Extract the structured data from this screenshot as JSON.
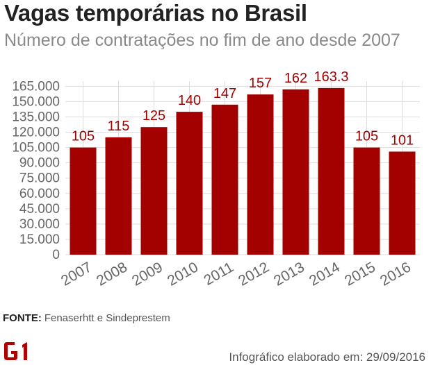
{
  "header": {
    "title": "Vagas temporárias no Brasil",
    "subtitle": "Número de contratações no fim de ano desde 2007"
  },
  "footer": {
    "source_label": "FONTE:",
    "source_text": "Fenaserhtt e Sindeprestem",
    "logo_text": "G1",
    "credit": "Infográfico elaborado em: 29/09/2016"
  },
  "colors": {
    "bar": "#a30000",
    "label": "#a30000",
    "grid": "#dddddd",
    "tick": "#666666"
  },
  "chart_data": {
    "type": "bar",
    "categories": [
      "2007",
      "2008",
      "2009",
      "2010",
      "2011",
      "2012",
      "2013",
      "2014",
      "2015",
      "2016"
    ],
    "values": [
      105000,
      115000,
      125000,
      140000,
      147000,
      157000,
      162000,
      163300,
      105000,
      101000
    ],
    "data_labels": [
      "105",
      "115",
      "125",
      "140",
      "147",
      "157",
      "162",
      "163.3",
      "105",
      "101"
    ],
    "y_ticks": [
      0,
      15000,
      30000,
      45000,
      60000,
      75000,
      90000,
      105000,
      120000,
      135000,
      150000,
      165000
    ],
    "y_tick_labels": [
      "0",
      "15.000",
      "30.000",
      "45.000",
      "60.000",
      "75.000",
      "90.000",
      "105.000",
      "120.000",
      "135.000",
      "150.000",
      "165.000"
    ],
    "ylim": [
      0,
      170000
    ],
    "grid": true,
    "x_tick_rotation_deg": -30
  }
}
